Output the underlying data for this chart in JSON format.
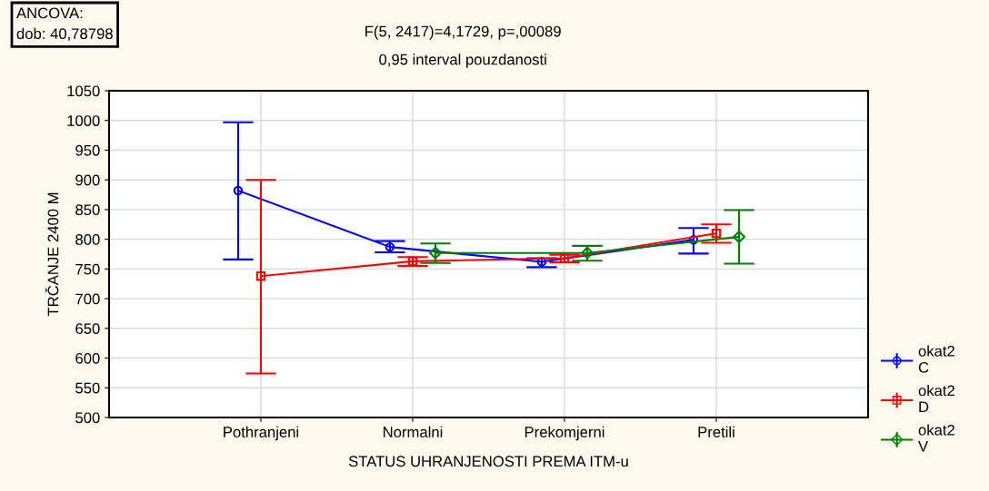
{
  "chart_data": {
    "type": "line",
    "title": "F(5, 2417)=4,1729, p=,00089",
    "subtitle": "0,95 interval pouzdanosti",
    "xlabel": "STATUS UHRANJENOSTI PREMA ITM-u",
    "ylabel": "TRČANJE 2400 M",
    "annotations": [
      "ANCOVA:\ndob: 40,78798"
    ],
    "categories": [
      "Pothranjeni",
      "Normalni",
      "Prekomjerni",
      "Pretili"
    ],
    "ylim": [
      500,
      1050
    ],
    "yticks": [
      500,
      550,
      600,
      650,
      700,
      750,
      800,
      850,
      900,
      950,
      1000,
      1050
    ],
    "grid": true,
    "legend": "right",
    "line_style": "solid",
    "series": [
      {
        "name": "okat2\nC",
        "color": "#0000ff",
        "marker": "circle",
        "values": [
          882,
          787,
          762,
          799
        ],
        "errors": [
          [
            766,
            997
          ],
          [
            778,
            797
          ],
          [
            753,
            768
          ],
          [
            776,
            819
          ]
        ]
      },
      {
        "name": "okat2\nD",
        "color": "#ff0000",
        "marker": "square",
        "values": [
          738,
          763,
          768,
          810
        ],
        "errors": [
          [
            574,
            900
          ],
          [
            755,
            770
          ],
          [
            761,
            774
          ],
          [
            794,
            825
          ]
        ]
      },
      {
        "name": "okat2\nV",
        "color": "#008000",
        "marker": "diamond",
        "values": [
          null,
          777,
          777,
          804
        ],
        "errors": [
          null,
          [
            760,
            793
          ],
          [
            764,
            789
          ],
          [
            759,
            849
          ]
        ]
      }
    ]
  }
}
